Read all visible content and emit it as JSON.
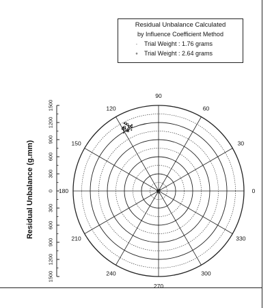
{
  "chart_data": {
    "type": "scatter",
    "subtype": "polar",
    "ylabel": "Residual Unbalance (g.mm)",
    "radial_range": [
      0,
      1500
    ],
    "radial_tick_labels": [
      "1500",
      "1200",
      "900",
      "600",
      "300",
      "0",
      "300",
      "600",
      "900",
      "1200",
      "1500"
    ],
    "angle_tick_labels": [
      "0",
      "30",
      "60",
      "90",
      "120",
      "150",
      "180",
      "210",
      "240",
      "270",
      "300",
      "330"
    ],
    "grid": true,
    "legend_placement": "top-right",
    "legend": {
      "title_line_1": "Residual Unbalance Calculated",
      "title_line_2": "by Influence Coefficient Method",
      "entries": [
        {
          "label": "Trial Weight : 1.76 grams",
          "marker": "dot"
        },
        {
          "label": "Trial Weight : 2.64 grams",
          "marker": "circle"
        }
      ]
    },
    "series": [
      {
        "name": "Trial Weight : 1.76 grams",
        "marker": "dot",
        "points": [
          {
            "angle": 113,
            "r": 1210
          },
          {
            "angle": 115,
            "r": 1260
          },
          {
            "angle": 117,
            "r": 1190
          },
          {
            "angle": 118,
            "r": 1240
          },
          {
            "angle": 119,
            "r": 1280
          },
          {
            "angle": 116,
            "r": 1300
          },
          {
            "angle": 114,
            "r": 1170
          },
          {
            "angle": 120,
            "r": 1220
          },
          {
            "angle": 112,
            "r": 1250
          },
          {
            "angle": 117,
            "r": 1330
          },
          {
            "angle": 121,
            "r": 1190
          },
          {
            "angle": 115,
            "r": 1230
          }
        ]
      },
      {
        "name": "Trial Weight : 2.64 grams",
        "marker": "circle",
        "points": [
          {
            "angle": 114,
            "r": 1240
          },
          {
            "angle": 116,
            "r": 1210
          },
          {
            "angle": 118,
            "r": 1270
          },
          {
            "angle": 117,
            "r": 1180
          },
          {
            "angle": 119,
            "r": 1250
          },
          {
            "angle": 115,
            "r": 1290
          },
          {
            "angle": 113,
            "r": 1230
          },
          {
            "angle": 120,
            "r": 1260
          },
          {
            "angle": 116,
            "r": 1320
          },
          {
            "angle": 118,
            "r": 1200
          }
        ]
      },
      {
        "name": "",
        "marker": "dot",
        "points": [
          {
            "angle": 40,
            "r": 30
          },
          {
            "angle": 160,
            "r": 25
          },
          {
            "angle": 280,
            "r": 35
          },
          {
            "angle": 100,
            "r": 20
          },
          {
            "angle": 220,
            "r": 28
          }
        ]
      }
    ]
  }
}
